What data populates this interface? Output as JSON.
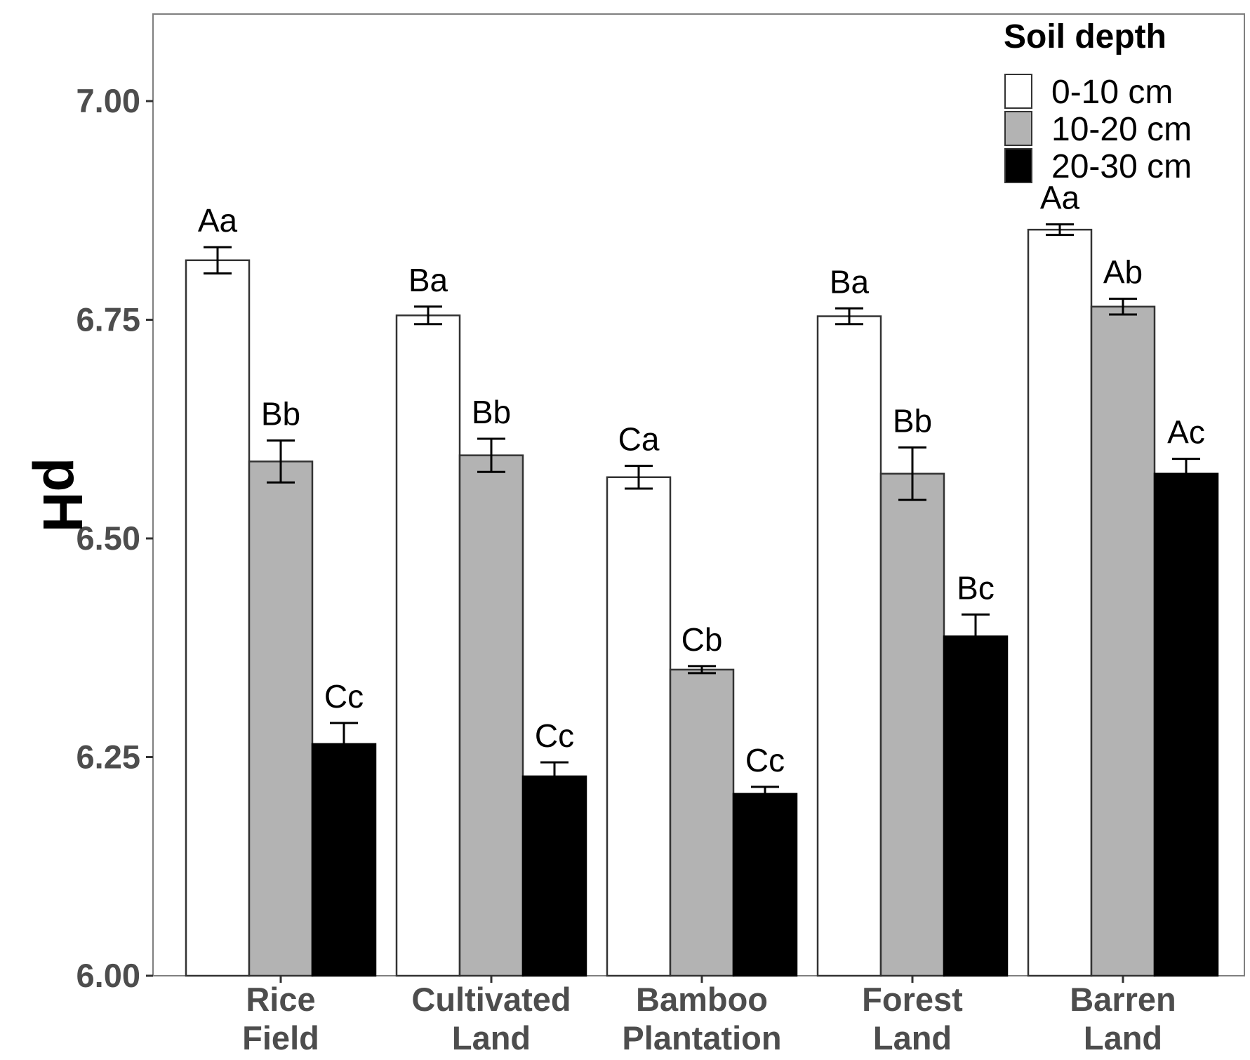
{
  "chart_data": {
    "type": "bar",
    "title": "",
    "xlabel": "",
    "ylabel": "pH",
    "ylim": [
      6.0,
      7.1
    ],
    "yticks": [
      "6.00",
      "6.25",
      "6.50",
      "6.75",
      "7.00"
    ],
    "categories": [
      [
        "Rice",
        "Field"
      ],
      [
        "Cultivated",
        "Land"
      ],
      [
        "Bamboo",
        "Plantation"
      ],
      [
        "Forest",
        "Land"
      ],
      [
        "Barren",
        "Land"
      ]
    ],
    "legend": {
      "title": "Soil depth",
      "position": "top-right"
    },
    "series": [
      {
        "name": "0-10 cm",
        "color": "#ffffff",
        "values": [
          6.818,
          6.755,
          6.57,
          6.754,
          6.853
        ],
        "errors": [
          0.015,
          0.01,
          0.013,
          0.009,
          0.006
        ],
        "labels": [
          "Aa",
          "Ba",
          "Ca",
          "Ba",
          "Aa"
        ]
      },
      {
        "name": "10-20 cm",
        "color": "#b3b3b3",
        "values": [
          6.588,
          6.595,
          6.35,
          6.574,
          6.765
        ],
        "errors": [
          0.024,
          0.019,
          0.004,
          0.03,
          0.009
        ],
        "labels": [
          "Bb",
          "Bb",
          "Cb",
          "Bb",
          "Ab"
        ]
      },
      {
        "name": "20-30 cm",
        "color": "#000000",
        "values": [
          6.265,
          6.228,
          6.208,
          6.388,
          6.574
        ],
        "errors": [
          0.024,
          0.016,
          0.008,
          0.025,
          0.017
        ],
        "labels": [
          "Cc",
          "Cc",
          "Cc",
          "Bc",
          "Ac"
        ]
      }
    ]
  }
}
